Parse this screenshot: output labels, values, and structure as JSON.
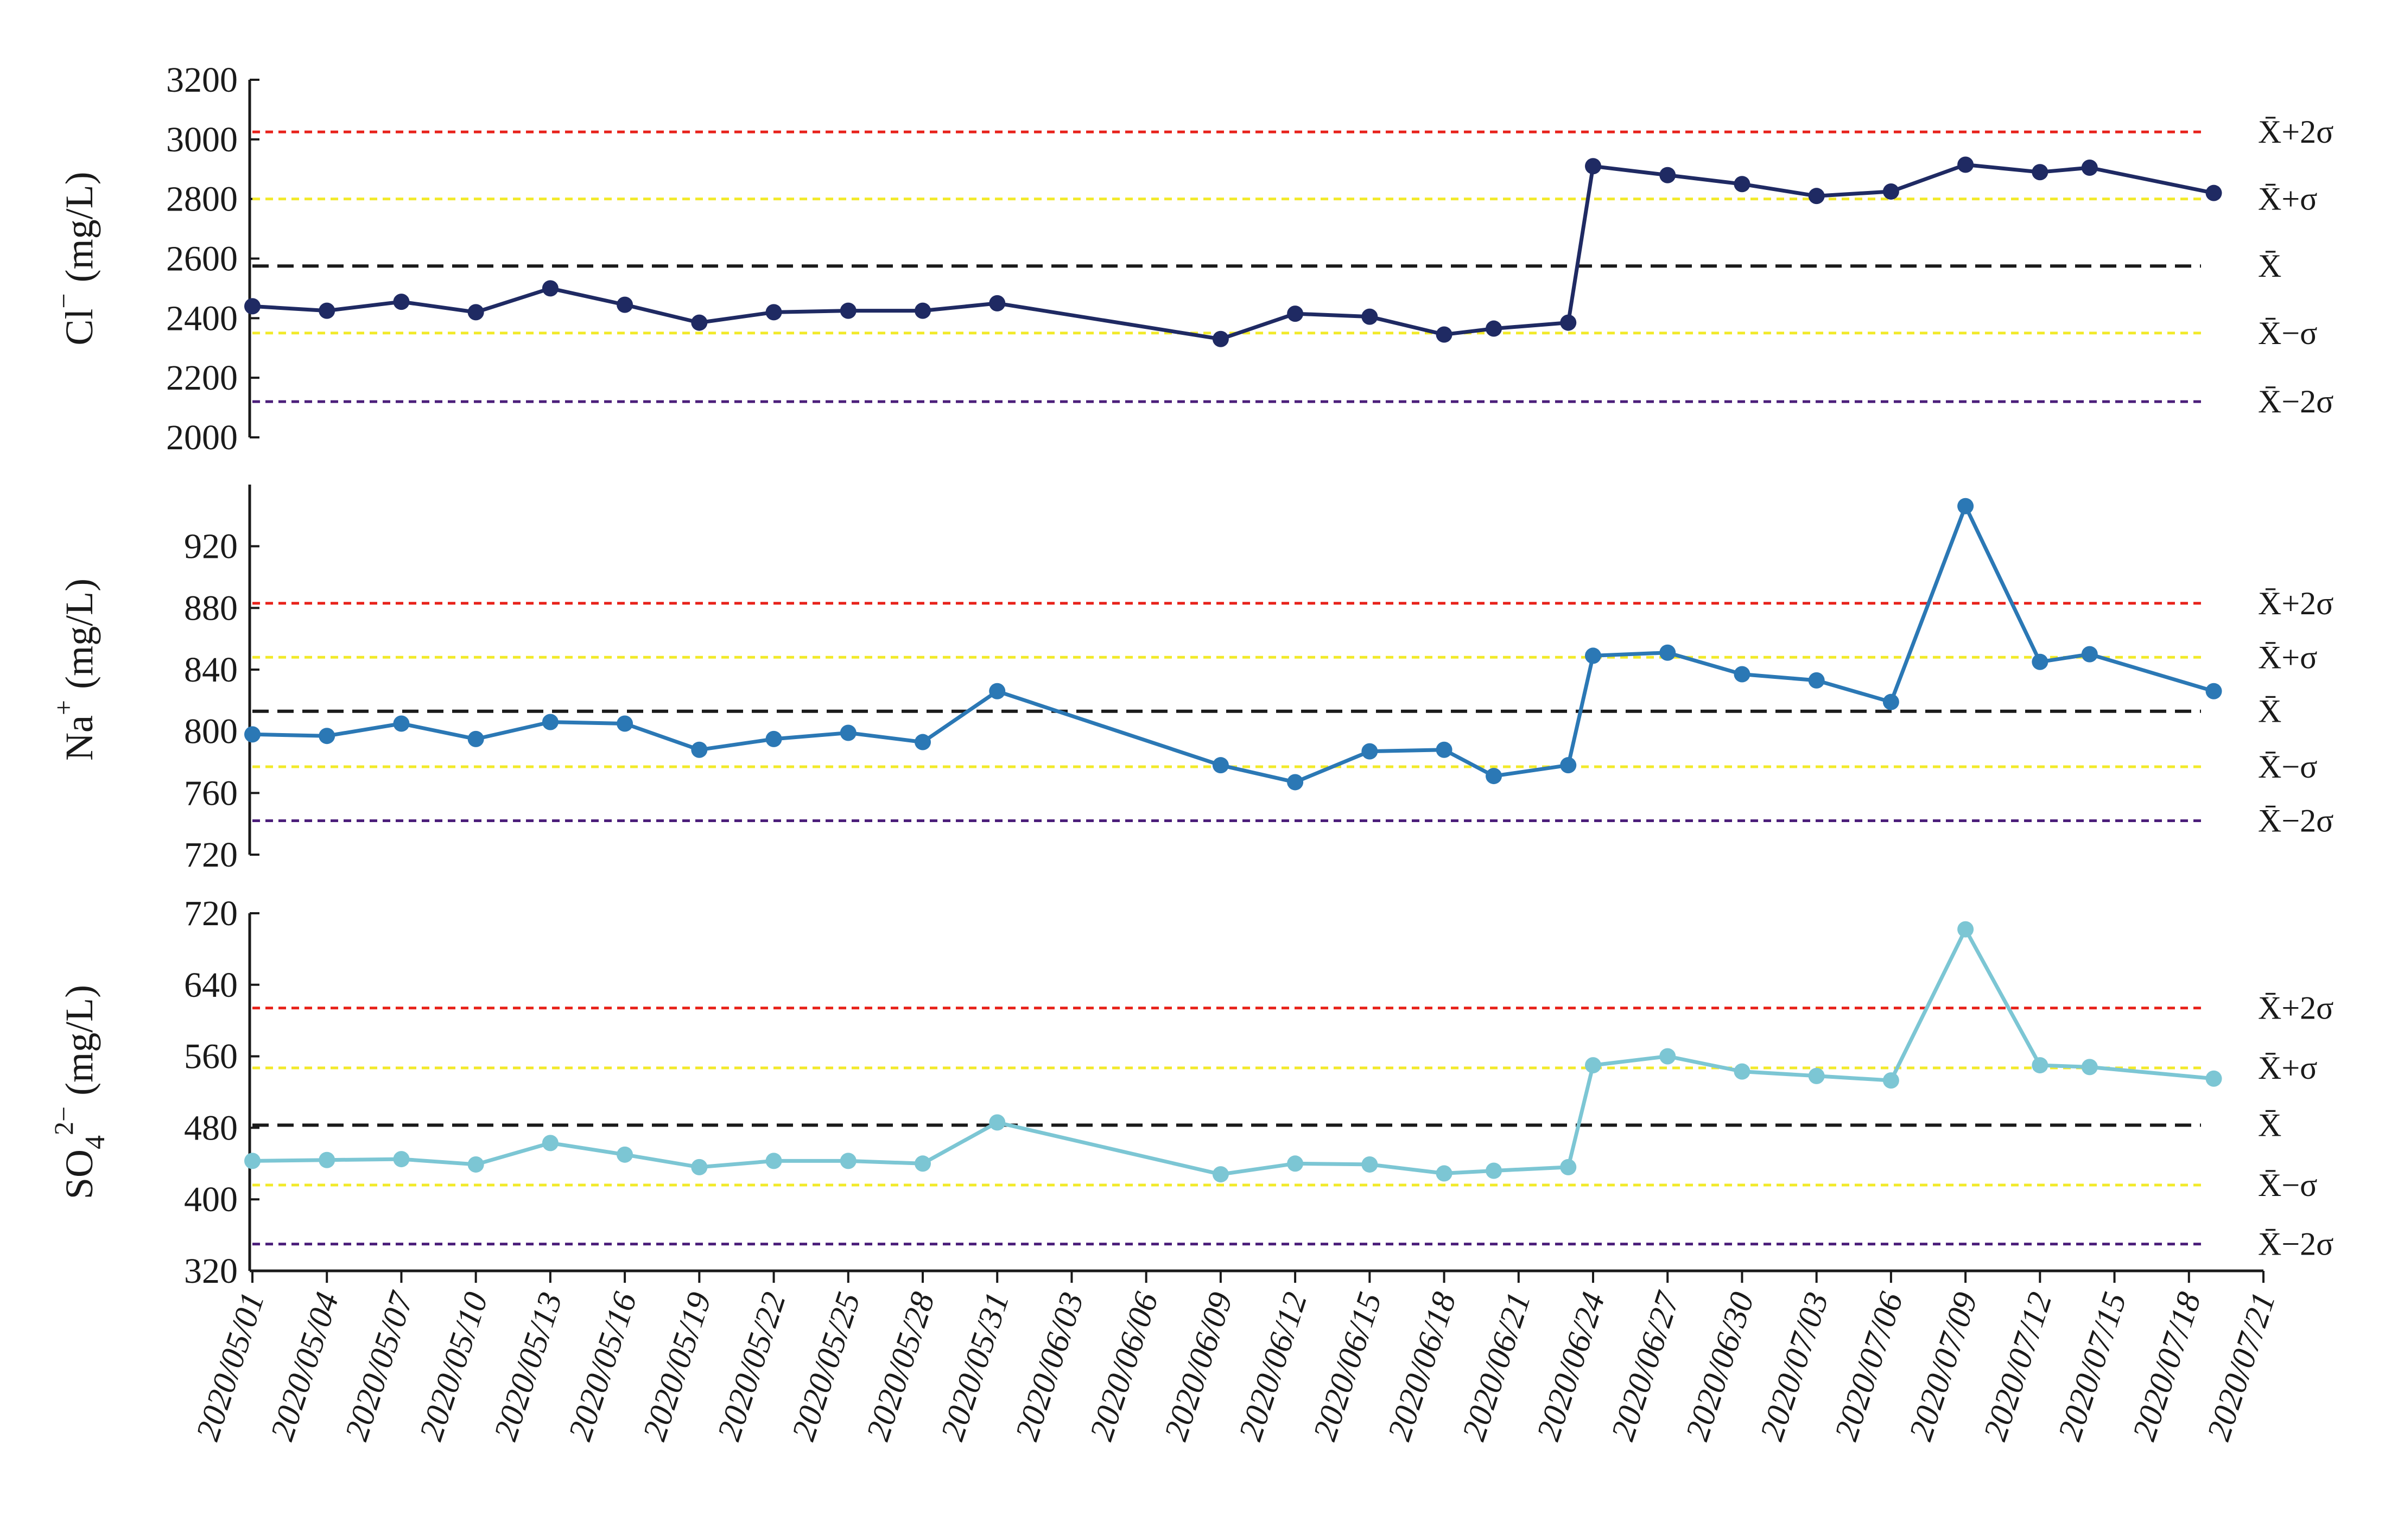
{
  "chart_data": {
    "type": "line",
    "x_tick_labels": [
      "2020/05/01",
      "2020/05/04",
      "2020/05/07",
      "2020/05/10",
      "2020/05/13",
      "2020/05/16",
      "2020/05/19",
      "2020/05/22",
      "2020/05/25",
      "2020/05/28",
      "2020/05/31",
      "2020/06/03",
      "2020/06/06",
      "2020/06/09",
      "2020/06/12",
      "2020/06/15",
      "2020/06/18",
      "2020/06/21",
      "2020/06/24",
      "2020/06/27",
      "2020/06/30",
      "2020/07/03",
      "2020/07/06",
      "2020/07/09",
      "2020/07/12",
      "2020/07/15",
      "2020/07/18",
      "2020/07/21"
    ],
    "x": [
      "2020/05/01",
      "2020/05/04",
      "2020/05/07",
      "2020/05/10",
      "2020/05/13",
      "2020/05/16",
      "2020/05/19",
      "2020/05/22",
      "2020/05/25",
      "2020/05/28",
      "2020/05/31",
      "2020/06/09",
      "2020/06/12",
      "2020/06/15",
      "2020/06/18",
      "2020/06/20",
      "2020/06/23",
      "2020/06/24",
      "2020/06/27",
      "2020/06/30",
      "2020/07/03",
      "2020/07/06",
      "2020/07/09",
      "2020/07/12",
      "2020/07/14",
      "2020/07/19"
    ],
    "panels": [
      {
        "id": "cl",
        "ylabel_base": "Cl",
        "ylabel_sup": "−",
        "ylabel_sub": "",
        "ylabel_unit": "(mg/L)",
        "ylim": [
          2000,
          3200
        ],
        "yticks": [
          "2000",
          "2200",
          "2400",
          "2600",
          "2800",
          "3000",
          "3200"
        ],
        "color": "#1f2a63",
        "values": [
          2440,
          2425,
          2455,
          2420,
          2500,
          2445,
          2385,
          2420,
          2425,
          2425,
          2450,
          2330,
          2415,
          2405,
          2345,
          2365,
          2385,
          2910,
          2880,
          2850,
          2810,
          2825,
          2915,
          2890,
          2905,
          2820
        ],
        "references": [
          {
            "label": "X̄+2σ",
            "value": 3025,
            "color": "#e8221b"
          },
          {
            "label": "X̄+σ",
            "value": 2800,
            "color": "#f2ea2a"
          },
          {
            "label": "X̄",
            "value": 2575,
            "color": "#1a1a1a"
          },
          {
            "label": "X̄−σ",
            "value": 2350,
            "color": "#f2ea2a"
          },
          {
            "label": "X̄−2σ",
            "value": 2120,
            "color": "#4b1e7a"
          }
        ]
      },
      {
        "id": "na",
        "ylabel_base": "Na",
        "ylabel_sup": "+",
        "ylabel_sub": "",
        "ylabel_unit": "(mg/L)",
        "ylim": [
          720,
          960
        ],
        "yticks": [
          "720",
          "760",
          "800",
          "840",
          "880",
          "920"
        ],
        "color": "#2b78b5",
        "values": [
          798,
          797,
          805,
          795,
          806,
          805,
          788,
          795,
          799,
          793,
          826,
          778,
          767,
          787,
          788,
          771,
          778,
          849,
          851,
          837,
          833,
          819,
          946,
          845,
          850,
          826
        ],
        "references": [
          {
            "label": "X̄+2σ",
            "value": 883,
            "color": "#e8221b"
          },
          {
            "label": "X̄+σ",
            "value": 848,
            "color": "#f2ea2a"
          },
          {
            "label": "X̄",
            "value": 813,
            "color": "#1a1a1a"
          },
          {
            "label": "X̄−σ",
            "value": 777,
            "color": "#f2ea2a"
          },
          {
            "label": "X̄−2σ",
            "value": 742,
            "color": "#4b1e7a"
          }
        ]
      },
      {
        "id": "so4",
        "ylabel_base": "SO",
        "ylabel_sup": "2−",
        "ylabel_sub": "4",
        "ylabel_unit": "(mg/L)",
        "ylim": [
          320,
          720
        ],
        "yticks": [
          "320",
          "400",
          "480",
          "560",
          "640",
          "720"
        ],
        "color": "#7cc6d4",
        "values": [
          443,
          444,
          445,
          439,
          463,
          450,
          436,
          443,
          443,
          440,
          486,
          428,
          440,
          439,
          429,
          432,
          436,
          550,
          560,
          543,
          538,
          533,
          702,
          550,
          548,
          535
        ],
        "references": [
          {
            "label": "X̄+2σ",
            "value": 614,
            "color": "#e8221b"
          },
          {
            "label": "X̄+σ",
            "value": 547,
            "color": "#f2ea2a"
          },
          {
            "label": "X̄",
            "value": 483,
            "color": "#1a1a1a"
          },
          {
            "label": "X̄−σ",
            "value": 416,
            "color": "#f2ea2a"
          },
          {
            "label": "X̄−2σ",
            "value": 350,
            "color": "#4b1e7a"
          }
        ]
      }
    ],
    "grid": false,
    "legend": "none"
  }
}
